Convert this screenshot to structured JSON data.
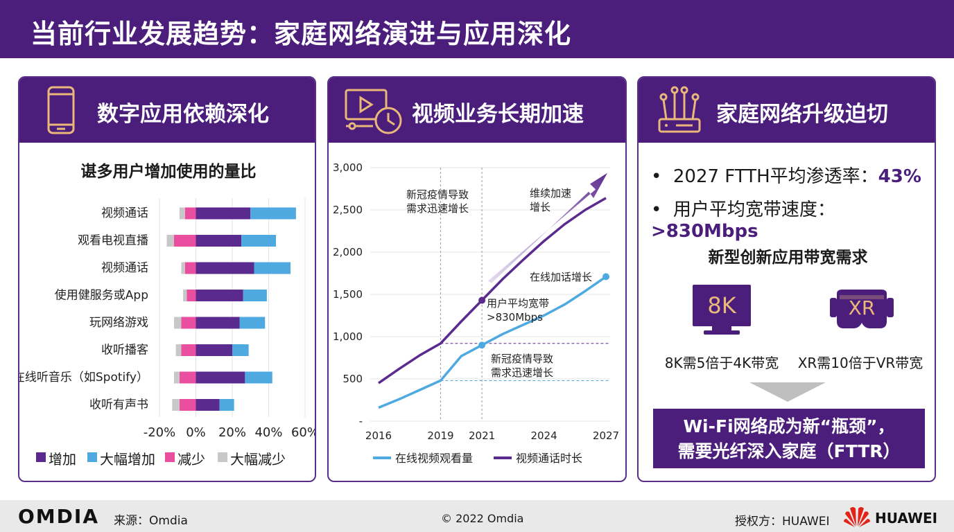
{
  "header": {
    "title": "当前行业发展趋势：家庭网络演进与应用深化"
  },
  "panel1": {
    "title": "数字应用依赖深化",
    "icon": "smartphone-icon",
    "chart_data": {
      "type": "bar",
      "stacked": true,
      "orientation": "horizontal",
      "title": "谌多用户增加使用的量比",
      "categories": [
        "视频通话",
        "观看电视直播",
        "视频通话",
        "使用健服务或App",
        "玩网络游戏",
        "收听播客",
        "在线听音乐（如Spotify）",
        "收听有声书"
      ],
      "series": [
        {
          "name": "大幅减少",
          "color": "#c8c8c8",
          "values": [
            -3,
            -4,
            -2,
            -2,
            -4,
            -3,
            -3,
            -4
          ]
        },
        {
          "name": "减少",
          "color": "#e94f9e",
          "values": [
            -6,
            -12,
            -6,
            -5,
            -8,
            -8,
            -9,
            -9
          ]
        },
        {
          "name": "增加",
          "color": "#5b2a8e",
          "values": [
            30,
            25,
            32,
            26,
            24,
            20,
            27,
            13
          ]
        },
        {
          "name": "大幅增加",
          "color": "#4fa9e1",
          "values": [
            25,
            19,
            20,
            13,
            14,
            9,
            15,
            8
          ]
        }
      ],
      "xticks": [
        "-20%",
        "0%",
        "20%",
        "40%",
        "60%"
      ],
      "xlim": [
        -20,
        60
      ],
      "legend_position": "bottom"
    }
  },
  "panel2": {
    "title": "视频业务长期加速",
    "icon": "video-clock-icon",
    "chart_data": {
      "type": "line",
      "x_ticks": [
        "2016",
        "2019",
        "2021",
        "2024",
        "2027"
      ],
      "y_ticks": [
        "3,000",
        "2,500",
        "2,000",
        "1,500",
        "1,000",
        "500",
        "-"
      ],
      "ylim": [
        0,
        3000
      ],
      "series": [
        {
          "name": "在线视频观看量",
          "color": "#4fa9e1",
          "x": [
            2016,
            2017,
            2018,
            2019,
            2020,
            2021,
            2022,
            2023,
            2024,
            2025,
            2026,
            2027
          ],
          "y": [
            160,
            260,
            370,
            480,
            770,
            900,
            1030,
            1140,
            1250,
            1380,
            1540,
            1710
          ]
        },
        {
          "name": "视频通话时长",
          "color": "#5b2a8e",
          "x": [
            2016,
            2017,
            2018,
            2019,
            2020,
            2021,
            2022,
            2023,
            2024,
            2025,
            2026,
            2027
          ],
          "y": [
            450,
            620,
            780,
            920,
            1180,
            1430,
            1680,
            1910,
            2130,
            2330,
            2500,
            2640
          ]
        }
      ],
      "annotations": {
        "covid_top": "新冠疫情导致需求迅速增长",
        "continue": "维续加速增长",
        "online_call": "在线加话增长",
        "avg_bw": "用户平均宽带>830Mbps",
        "covid_bottom": "新冠疫情导致需求迅速增长"
      },
      "legend_position": "bottom"
    }
  },
  "panel3": {
    "title": "家庭网络升级迫切",
    "icon": "router-icon",
    "bullets": [
      {
        "label": "2027 FTTH平均渗透率：",
        "value": "43%"
      },
      {
        "label": "用户平均宽带速度：",
        "value": ">830Mbps"
      }
    ],
    "subhead": "新型创新应用带宽需求",
    "apps": [
      {
        "icon": "8k-tv-icon",
        "badge": "8K",
        "caption": "8K需5倍于4K带宽"
      },
      {
        "icon": "xr-headset-icon",
        "badge": "XR",
        "caption": "XR需10倍于VR带宽"
      }
    ],
    "callout": [
      "Wi-Fi网络成为新“瓶颈”，",
      "需要光纤深入家庭（FTTR）"
    ]
  },
  "footer": {
    "logo": "OMDIA",
    "source": "来源：Omdia",
    "copyright": "© 2022 Omdia",
    "authorized": "授权方：HUAWEI",
    "huawei": "HUAWEI"
  },
  "colors": {
    "brand": "#4b1e7c",
    "increase": "#5b2a8e",
    "big_increase": "#4fa9e1",
    "decrease": "#e94f9e",
    "big_decrease": "#c8c8c8"
  }
}
